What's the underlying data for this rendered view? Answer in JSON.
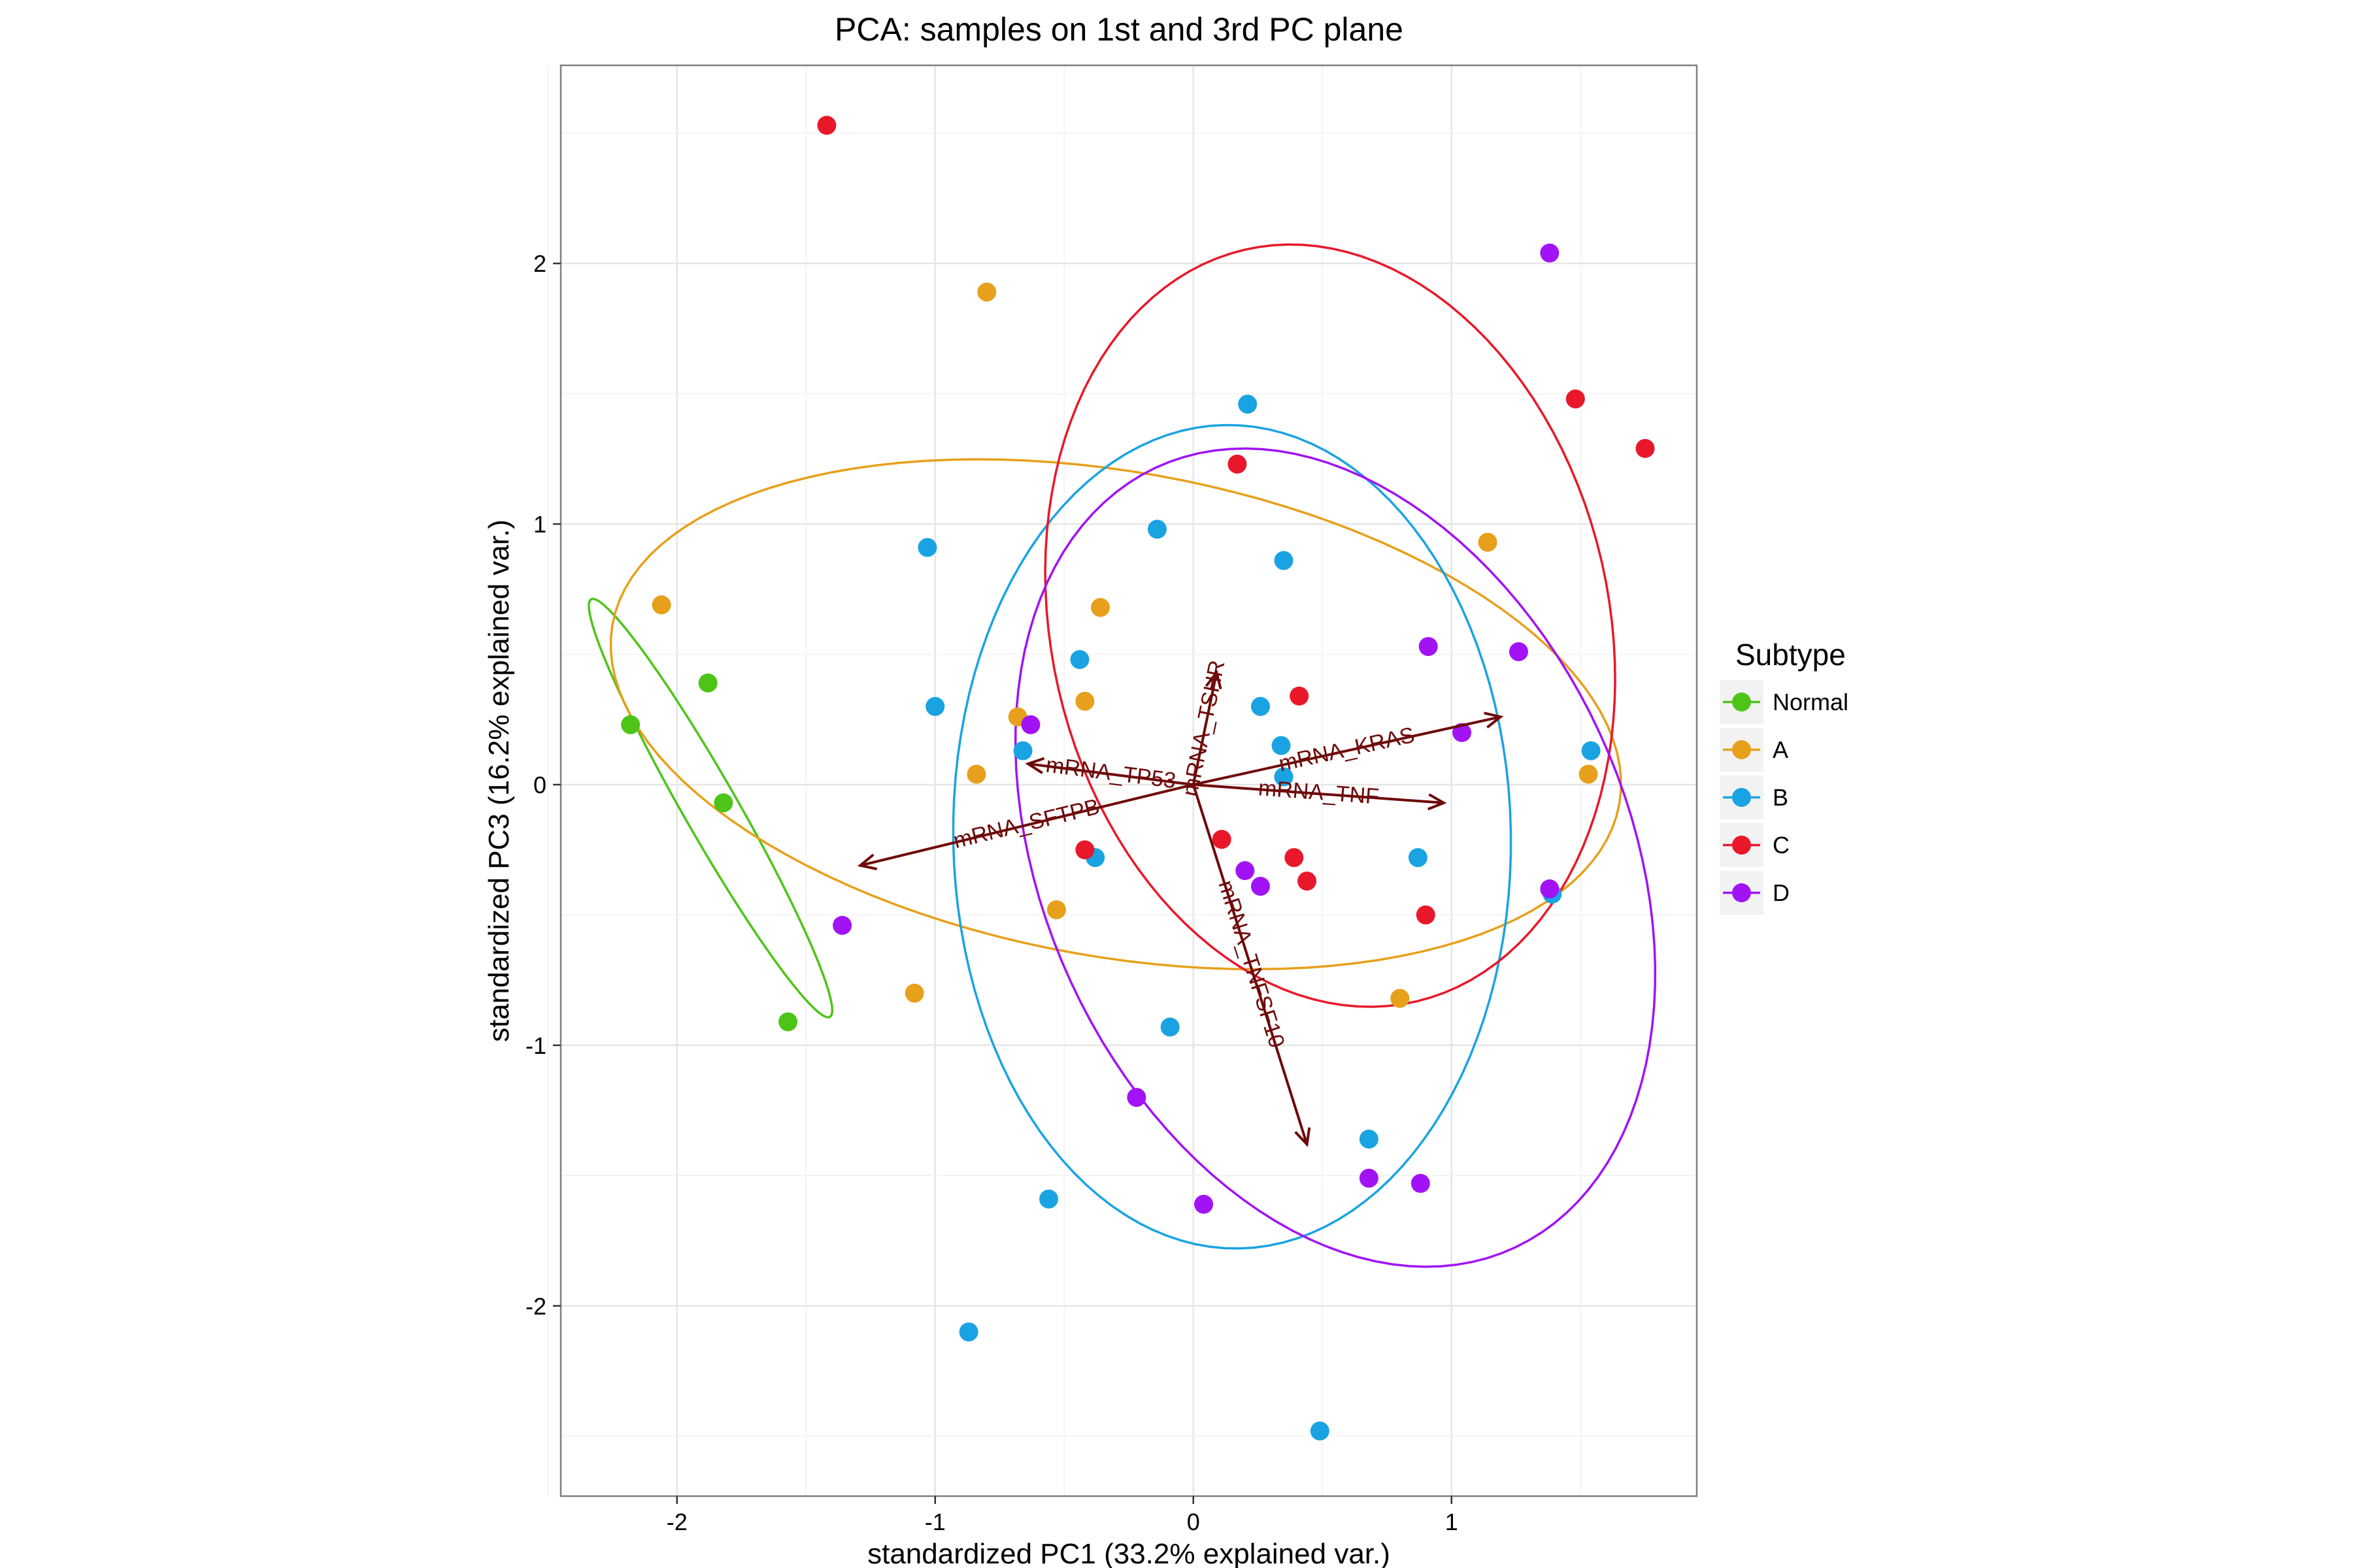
{
  "chart_data": {
    "type": "scatter",
    "title": "PCA: samples on 1st and 3rd PC plane",
    "xlabel": "standardized PC1 (33.2% explained var.)",
    "ylabel": "standardized PC3 (16.2% explained var.)",
    "xlim": [
      -2.45,
      1.95
    ],
    "ylim": [
      -2.73,
      2.76
    ],
    "xticks": [
      -2,
      -1,
      0,
      1
    ],
    "yticks": [
      -2,
      -1,
      0,
      1,
      2
    ],
    "grid": true,
    "legend": {
      "title": "Subtype",
      "placement": "right"
    },
    "series": [
      {
        "name": "Normal",
        "color": "#4DC518",
        "points": [
          [
            -2.18,
            0.23
          ],
          [
            -1.88,
            0.39
          ],
          [
            -1.82,
            -0.07
          ],
          [
            -1.57,
            -0.91
          ]
        ],
        "ellipse": {
          "cx": -1.87,
          "cy": -0.09,
          "rx": 0.925,
          "ry": 0.105,
          "angle": -60
        }
      },
      {
        "name": "A",
        "color": "#E7A01B",
        "points": [
          [
            -2.06,
            0.69
          ],
          [
            -0.8,
            1.89
          ],
          [
            -0.36,
            0.68
          ],
          [
            -0.68,
            0.26
          ],
          [
            -0.42,
            0.32
          ],
          [
            -0.84,
            0.04
          ],
          [
            -0.53,
            -0.48
          ],
          [
            -1.08,
            -0.8
          ],
          [
            1.14,
            0.93
          ],
          [
            1.53,
            0.04
          ],
          [
            0.8,
            -0.82
          ]
        ],
        "ellipse": {
          "cx": -0.3,
          "cy": 0.27,
          "rx": 1.98,
          "ry": 0.93,
          "angle": -10
        }
      },
      {
        "name": "B",
        "color": "#1AA3E2",
        "points": [
          [
            -1.03,
            0.91
          ],
          [
            -1.0,
            0.3
          ],
          [
            -0.66,
            0.13
          ],
          [
            -0.44,
            0.48
          ],
          [
            -0.14,
            0.98
          ],
          [
            0.21,
            1.46
          ],
          [
            0.35,
            0.86
          ],
          [
            0.26,
            0.3
          ],
          [
            0.34,
            0.15
          ],
          [
            0.35,
            0.03
          ],
          [
            -0.38,
            -0.28
          ],
          [
            0.87,
            -0.28
          ],
          [
            1.39,
            -0.42
          ],
          [
            1.54,
            0.13
          ],
          [
            -0.09,
            -0.93
          ],
          [
            -0.56,
            -1.59
          ],
          [
            -0.87,
            -2.1
          ],
          [
            0.68,
            -1.36
          ],
          [
            0.49,
            -2.48
          ]
        ],
        "ellipse": {
          "cx": 0.15,
          "cy": -0.2,
          "rx": 1.58,
          "ry": 1.08,
          "angle": -89
        }
      },
      {
        "name": "C",
        "color": "#E8182A",
        "points": [
          [
            -1.42,
            2.53
          ],
          [
            0.17,
            1.23
          ],
          [
            1.48,
            1.48
          ],
          [
            1.75,
            1.29
          ],
          [
            0.41,
            0.34
          ],
          [
            -0.42,
            -0.25
          ],
          [
            0.11,
            -0.21
          ],
          [
            0.39,
            -0.28
          ],
          [
            0.44,
            -0.37
          ],
          [
            0.9,
            -0.5
          ]
        ],
        "ellipse": {
          "cx": 0.53,
          "cy": 0.61,
          "rx": 1.48,
          "ry": 1.08,
          "angle": -77
        }
      },
      {
        "name": "D",
        "color": "#A113F4",
        "points": [
          [
            1.38,
            2.04
          ],
          [
            0.91,
            0.53
          ],
          [
            1.26,
            0.51
          ],
          [
            1.04,
            0.2
          ],
          [
            -0.63,
            0.23
          ],
          [
            0.2,
            -0.33
          ],
          [
            0.26,
            -0.39
          ],
          [
            1.38,
            -0.4
          ],
          [
            -1.36,
            -0.54
          ],
          [
            -0.22,
            -1.2
          ],
          [
            0.68,
            -1.51
          ],
          [
            0.88,
            -1.53
          ],
          [
            0.04,
            -1.61
          ]
        ],
        "ellipse": {
          "cx": 0.55,
          "cy": -0.28,
          "rx": 1.65,
          "ry": 1.13,
          "angle": -65
        }
      }
    ],
    "loadings": {
      "color": "#6E0A0A",
      "origin": [
        0,
        0
      ],
      "vectors": [
        {
          "label": "mRNA_TSHR",
          "x": 0.09,
          "y": 0.43
        },
        {
          "label": "mRNA_KRAS",
          "x": 1.19,
          "y": 0.26
        },
        {
          "label": "mRNA_TNF",
          "x": 0.97,
          "y": -0.07
        },
        {
          "label": "mRNA_TP53",
          "x": -0.64,
          "y": 0.08
        },
        {
          "label": "mRNA_SFTPB",
          "x": -1.29,
          "y": -0.31
        },
        {
          "label": "mRNA_TNFSF10",
          "x": 0.44,
          "y": -1.38
        }
      ]
    }
  }
}
